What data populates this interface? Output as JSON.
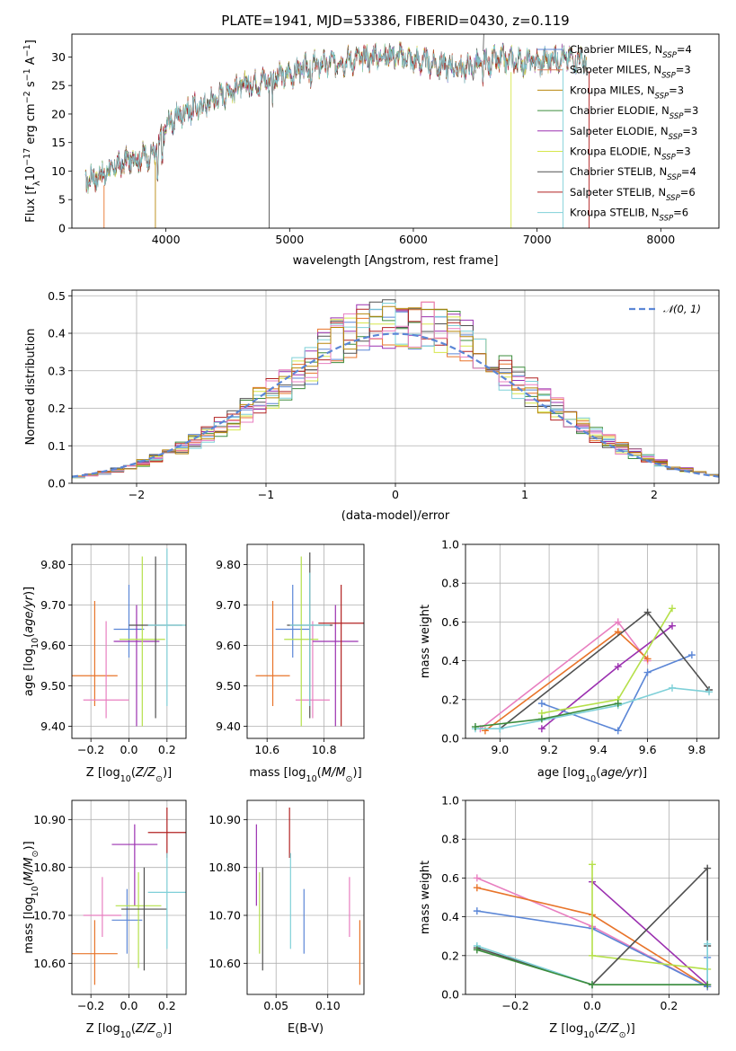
{
  "title": "PLATE=1941, MJD=53386, FIBERID=0430, z=0.119",
  "colors": {
    "chabrier_miles": "#5b86d6",
    "salpeter_miles": "#e07a5f",
    "kroupa_miles": "#b8860b",
    "chabrier_elodie": "#3c8c3c",
    "salpeter_elodie": "#9b30b0",
    "kroupa_elodie": "#d6e64a",
    "chabrier_stelib": "#505050",
    "salpeter_stelib": "#b22222",
    "kroupa_stelib": "#7fd0d8",
    "gauss": "#5b86d6",
    "orange": "#e8742a",
    "pink": "#e87fc0",
    "lime": "#b5e04a",
    "blue": "#5b86d6",
    "purple": "#9b30b0"
  },
  "chart_data": [
    {
      "id": "spectrum",
      "type": "line",
      "title": "PLATE=1941, MJD=53386, FIBERID=0430, z=0.119",
      "xlabel": "wavelength [Angstrom, rest frame]",
      "ylabel": "Flux [f_λ10^-17 erg cm^-2 s^-1 A^-1]",
      "xlim": [
        3240,
        8470
      ],
      "ylim": [
        0,
        34
      ],
      "xticks": [
        4000,
        5000,
        6000,
        7000,
        8000
      ],
      "yticks": [
        0,
        5,
        10,
        15,
        20,
        25,
        30
      ],
      "grid": false,
      "legend_position": "top-right",
      "legend": [
        {
          "label": "Chabrier MILES, N",
          "sub": "SSP",
          "n": "=4",
          "color": "#5b86d6"
        },
        {
          "label": "Salpeter MILES, N",
          "sub": "SSP",
          "n": "=3",
          "color": "#e07a5f"
        },
        {
          "label": "Kroupa MILES, N",
          "sub": "SSP",
          "n": "=3",
          "color": "#b8860b"
        },
        {
          "label": "Chabrier ELODIE, N",
          "sub": "SSP",
          "n": "=3",
          "color": "#3c8c3c"
        },
        {
          "label": "Salpeter ELODIE, N",
          "sub": "SSP",
          "n": "=3",
          "color": "#9b30b0"
        },
        {
          "label": "Kroupa ELODIE, N",
          "sub": "SSP",
          "n": "=3",
          "color": "#d6e64a"
        },
        {
          "label": "Chabrier STELIB, N",
          "sub": "SSP",
          "n": "=4",
          "color": "#505050"
        },
        {
          "label": "Salpeter STELIB, N",
          "sub": "SSP",
          "n": "=6",
          "color": "#b22222"
        },
        {
          "label": "Kroupa STELIB, N",
          "sub": "SSP",
          "n": "=6",
          "color": "#7fd0d8"
        }
      ],
      "continuum": {
        "x": [
          3350,
          3500,
          3700,
          3900,
          3950,
          4000,
          4150,
          4300,
          4500,
          4700,
          5000,
          5200,
          5500,
          5800,
          6100,
          6400,
          6700,
          7000,
          7200,
          7400
        ],
        "y": [
          8.5,
          9.5,
          12,
          13,
          15,
          18,
          20.5,
          21.5,
          24,
          25.5,
          27,
          28.5,
          29.5,
          30.5,
          29,
          28,
          29.5,
          29,
          30,
          29.5
        ]
      }
    },
    {
      "id": "residuals",
      "type": "histogram",
      "xlabel": "(data-model)/error",
      "ylabel": "Normed distribution",
      "xlim": [
        -2.5,
        2.5
      ],
      "ylim": [
        0,
        0.515
      ],
      "xticks": [
        -2,
        -1,
        0,
        1,
        2
      ],
      "yticks": [
        0.0,
        0.1,
        0.2,
        0.3,
        0.4,
        0.5
      ],
      "grid": true,
      "legend_position": "top-right",
      "legend": [
        {
          "label": "𝒩(0, 1)",
          "color": "#5b86d6",
          "style": "dashed"
        }
      ],
      "bin_width": 0.1
    },
    {
      "id": "age_vs_Z",
      "type": "errorbar",
      "xlabel": "Z [log10(Z/Z⊙)]",
      "ylabel": "age [log10(age/yr)]",
      "xlim": [
        -0.3,
        0.3
      ],
      "ylim": [
        9.37,
        9.85
      ],
      "xticks": [
        -0.2,
        0.0,
        0.2
      ],
      "yticks": [
        9.4,
        9.5,
        9.6,
        9.7,
        9.8
      ],
      "points": [
        {
          "x": -0.18,
          "xerr": 0.12,
          "y": 9.525,
          "ylo": 9.45,
          "yhi": 9.71,
          "color": "#e8742a"
        },
        {
          "x": -0.12,
          "xerr": 0.12,
          "y": 9.465,
          "ylo": 9.42,
          "yhi": 9.66,
          "color": "#e87fc0"
        },
        {
          "x": 0.0,
          "xerr": 0.08,
          "y": 9.64,
          "ylo": 9.57,
          "yhi": 9.75,
          "color": "#5b86d6"
        },
        {
          "x": 0.04,
          "xerr": 0.12,
          "y": 9.61,
          "ylo": 9.4,
          "yhi": 9.7,
          "color": "#9b30b0"
        },
        {
          "x": 0.07,
          "xerr": 0.12,
          "y": 9.615,
          "ylo": 9.4,
          "yhi": 9.82,
          "color": "#b5e04a"
        },
        {
          "x": 0.14,
          "xerr": 0.14,
          "y": 9.65,
          "ylo": 9.42,
          "yhi": 9.82,
          "color": "#505050"
        },
        {
          "x": 0.2,
          "xerr": 0.1,
          "y": 9.65,
          "ylo": 9.45,
          "yhi": 9.84,
          "color": "#7fd0d8"
        }
      ]
    },
    {
      "id": "age_vs_mass",
      "type": "errorbar",
      "xlabel": "mass [log10(M/M⊙)]",
      "xlim": [
        10.53,
        10.94
      ],
      "ylim": [
        9.37,
        9.85
      ],
      "xticks": [
        10.6,
        10.8
      ],
      "yticks": [
        9.4,
        9.5,
        9.6,
        9.7,
        9.8
      ],
      "points": [
        {
          "x": 10.62,
          "xerr": 0.06,
          "y": 9.525,
          "ylo": 9.45,
          "yhi": 9.71,
          "color": "#e8742a"
        },
        {
          "x": 10.76,
          "xerr": 0.06,
          "y": 9.465,
          "ylo": 9.42,
          "yhi": 9.66,
          "color": "#e87fc0"
        },
        {
          "x": 10.69,
          "xerr": 0.06,
          "y": 9.64,
          "ylo": 9.57,
          "yhi": 9.75,
          "color": "#5b86d6"
        },
        {
          "x": 10.84,
          "xerr": 0.08,
          "y": 9.61,
          "ylo": 9.4,
          "yhi": 9.7,
          "color": "#9b30b0"
        },
        {
          "x": 10.72,
          "xerr": 0.06,
          "y": 9.615,
          "ylo": 9.4,
          "yhi": 9.82,
          "color": "#b5e04a"
        },
        {
          "x": 10.75,
          "xerr": 0.08,
          "y": 9.65,
          "ylo": 9.42,
          "yhi": 9.83,
          "color": "#505050"
        },
        {
          "x": 10.86,
          "xerr": 0.08,
          "y": 9.655,
          "ylo": 9.4,
          "yhi": 9.75,
          "color": "#b22222"
        },
        {
          "x": 10.75,
          "xerr": 0.07,
          "y": 9.65,
          "ylo": 9.45,
          "yhi": 9.78,
          "color": "#7fd0d8"
        }
      ]
    },
    {
      "id": "weight_vs_age",
      "type": "line",
      "xlabel": "age [log10(age/yr)]",
      "ylabel": "mass weight",
      "xlim": [
        8.86,
        9.89
      ],
      "ylim": [
        0,
        1
      ],
      "xticks": [
        9.0,
        9.2,
        9.4,
        9.6,
        9.8
      ],
      "yticks": [
        0.0,
        0.2,
        0.4,
        0.6,
        0.8,
        1.0
      ],
      "series": [
        {
          "color": "#e87fc0",
          "x": [
            8.92,
            9.48,
            9.6
          ],
          "y": [
            0.05,
            0.6,
            0.4
          ]
        },
        {
          "color": "#e8742a",
          "x": [
            8.94,
            9.48,
            9.6
          ],
          "y": [
            0.04,
            0.55,
            0.41
          ]
        },
        {
          "color": "#9b30b0",
          "x": [
            9.17,
            9.48,
            9.7
          ],
          "y": [
            0.05,
            0.37,
            0.58
          ]
        },
        {
          "color": "#5b86d6",
          "x": [
            9.17,
            9.48,
            9.6,
            9.78
          ],
          "y": [
            0.18,
            0.04,
            0.34,
            0.43
          ]
        },
        {
          "color": "#b5e04a",
          "x": [
            9.17,
            9.48,
            9.7
          ],
          "y": [
            0.13,
            0.2,
            0.67
          ]
        },
        {
          "color": "#505050",
          "x": [
            9.0,
            9.6,
            9.85
          ],
          "y": [
            0.05,
            0.65,
            0.25
          ]
        },
        {
          "color": "#7fd0d8",
          "x": [
            8.9,
            9.0,
            9.48,
            9.7,
            9.85
          ],
          "y": [
            0.05,
            0.05,
            0.17,
            0.26,
            0.24
          ]
        },
        {
          "color": "#3c8c3c",
          "x": [
            8.9,
            9.17,
            9.48
          ],
          "y": [
            0.06,
            0.1,
            0.18
          ]
        }
      ]
    },
    {
      "id": "mass_vs_Z",
      "type": "errorbar",
      "xlabel": "Z [log10(Z/Z⊙)]",
      "ylabel": "mass [log10(M/M⊙)]",
      "xlim": [
        -0.3,
        0.3
      ],
      "ylim": [
        10.535,
        10.94
      ],
      "xticks": [
        -0.2,
        0.0,
        0.2
      ],
      "yticks": [
        10.6,
        10.7,
        10.8,
        10.9
      ],
      "points": [
        {
          "x": -0.18,
          "xerr": 0.12,
          "y": 10.62,
          "ylo": 10.555,
          "yhi": 10.69,
          "color": "#e8742a"
        },
        {
          "x": -0.14,
          "xerr": 0.1,
          "y": 10.7,
          "ylo": 10.655,
          "yhi": 10.78,
          "color": "#e87fc0"
        },
        {
          "x": -0.01,
          "xerr": 0.08,
          "y": 10.69,
          "ylo": 10.62,
          "yhi": 10.755,
          "color": "#5b86d6"
        },
        {
          "x": 0.03,
          "xerr": 0.12,
          "y": 10.848,
          "ylo": 10.72,
          "yhi": 10.89,
          "color": "#9b30b0"
        },
        {
          "x": 0.05,
          "xerr": 0.12,
          "y": 10.72,
          "ylo": 10.59,
          "yhi": 10.79,
          "color": "#b5e04a"
        },
        {
          "x": 0.08,
          "xerr": 0.12,
          "y": 10.713,
          "ylo": 10.585,
          "yhi": 10.8,
          "color": "#505050"
        },
        {
          "x": 0.2,
          "xerr": 0.1,
          "y": 10.873,
          "ylo": 10.82,
          "yhi": 10.925,
          "color": "#b22222"
        },
        {
          "x": 0.2,
          "xerr": 0.1,
          "y": 10.748,
          "ylo": 10.63,
          "yhi": 10.83,
          "color": "#7fd0d8"
        }
      ]
    },
    {
      "id": "mass_vs_ebv",
      "type": "errorbar",
      "xlabel": "E(B-V)",
      "xlim": [
        0.022,
        0.135
      ],
      "ylim": [
        10.535,
        10.94
      ],
      "xticks": [
        0.05,
        0.1
      ],
      "yticks": [
        10.6,
        10.7,
        10.8,
        10.9
      ],
      "points": [
        {
          "x": 0.031,
          "y": 10.79,
          "ylo": 10.72,
          "yhi": 10.89,
          "color": "#9b30b0"
        },
        {
          "x": 0.034,
          "y": 10.7,
          "ylo": 10.62,
          "yhi": 10.79,
          "color": "#b5e04a"
        },
        {
          "x": 0.037,
          "y": 10.7,
          "ylo": 10.585,
          "yhi": 10.8,
          "color": "#505050"
        },
        {
          "x": 0.063,
          "y": 10.873,
          "ylo": 10.82,
          "yhi": 10.925,
          "color": "#b22222"
        },
        {
          "x": 0.064,
          "y": 10.73,
          "ylo": 10.63,
          "yhi": 10.83,
          "color": "#7fd0d8"
        },
        {
          "x": 0.077,
          "y": 10.69,
          "ylo": 10.62,
          "yhi": 10.755,
          "color": "#5b86d6"
        },
        {
          "x": 0.121,
          "y": 10.7,
          "ylo": 10.655,
          "yhi": 10.78,
          "color": "#e87fc0"
        },
        {
          "x": 0.131,
          "y": 10.62,
          "ylo": 10.555,
          "yhi": 10.69,
          "color": "#e8742a"
        }
      ]
    },
    {
      "id": "weight_vs_Z",
      "type": "line",
      "xlabel": "Z [log10(Z/Z⊙)]",
      "ylabel": "mass weight",
      "xlim": [
        -0.33,
        0.33
      ],
      "ylim": [
        0,
        1
      ],
      "xticks": [
        -0.2,
        0.0,
        0.2
      ],
      "yticks": [
        0.0,
        0.2,
        0.4,
        0.6,
        0.8,
        1.0
      ],
      "series": [
        {
          "color": "#e87fc0",
          "x": [
            -0.3,
            0.0,
            0.3
          ],
          "y": [
            0.6,
            0.35,
            0.04
          ]
        },
        {
          "color": "#e8742a",
          "x": [
            -0.3,
            0.0,
            0.3
          ],
          "y": [
            0.55,
            0.41,
            0.04
          ]
        },
        {
          "color": "#5b86d6",
          "x": [
            -0.3,
            0.0,
            0.3,
            0.3
          ],
          "y": [
            0.43,
            0.34,
            0.04,
            0.19
          ]
        },
        {
          "color": "#9b30b0",
          "x": [
            0.0,
            0.3
          ],
          "y": [
            0.58,
            0.05
          ]
        },
        {
          "color": "#b5e04a",
          "x": [
            0.0,
            0.0,
            0.3
          ],
          "y": [
            0.67,
            0.2,
            0.13
          ]
        },
        {
          "color": "#505050",
          "x": [
            -0.3,
            0.0,
            0.3,
            0.3
          ],
          "y": [
            0.24,
            0.05,
            0.65,
            0.25
          ]
        },
        {
          "color": "#7fd0d8",
          "x": [
            -0.3,
            0.0,
            0.3,
            0.3
          ],
          "y": [
            0.25,
            0.05,
            0.05,
            0.26
          ]
        },
        {
          "color": "#3c8c3c",
          "x": [
            -0.3,
            0.0,
            0.3
          ],
          "y": [
            0.23,
            0.05,
            0.05
          ]
        }
      ]
    }
  ]
}
